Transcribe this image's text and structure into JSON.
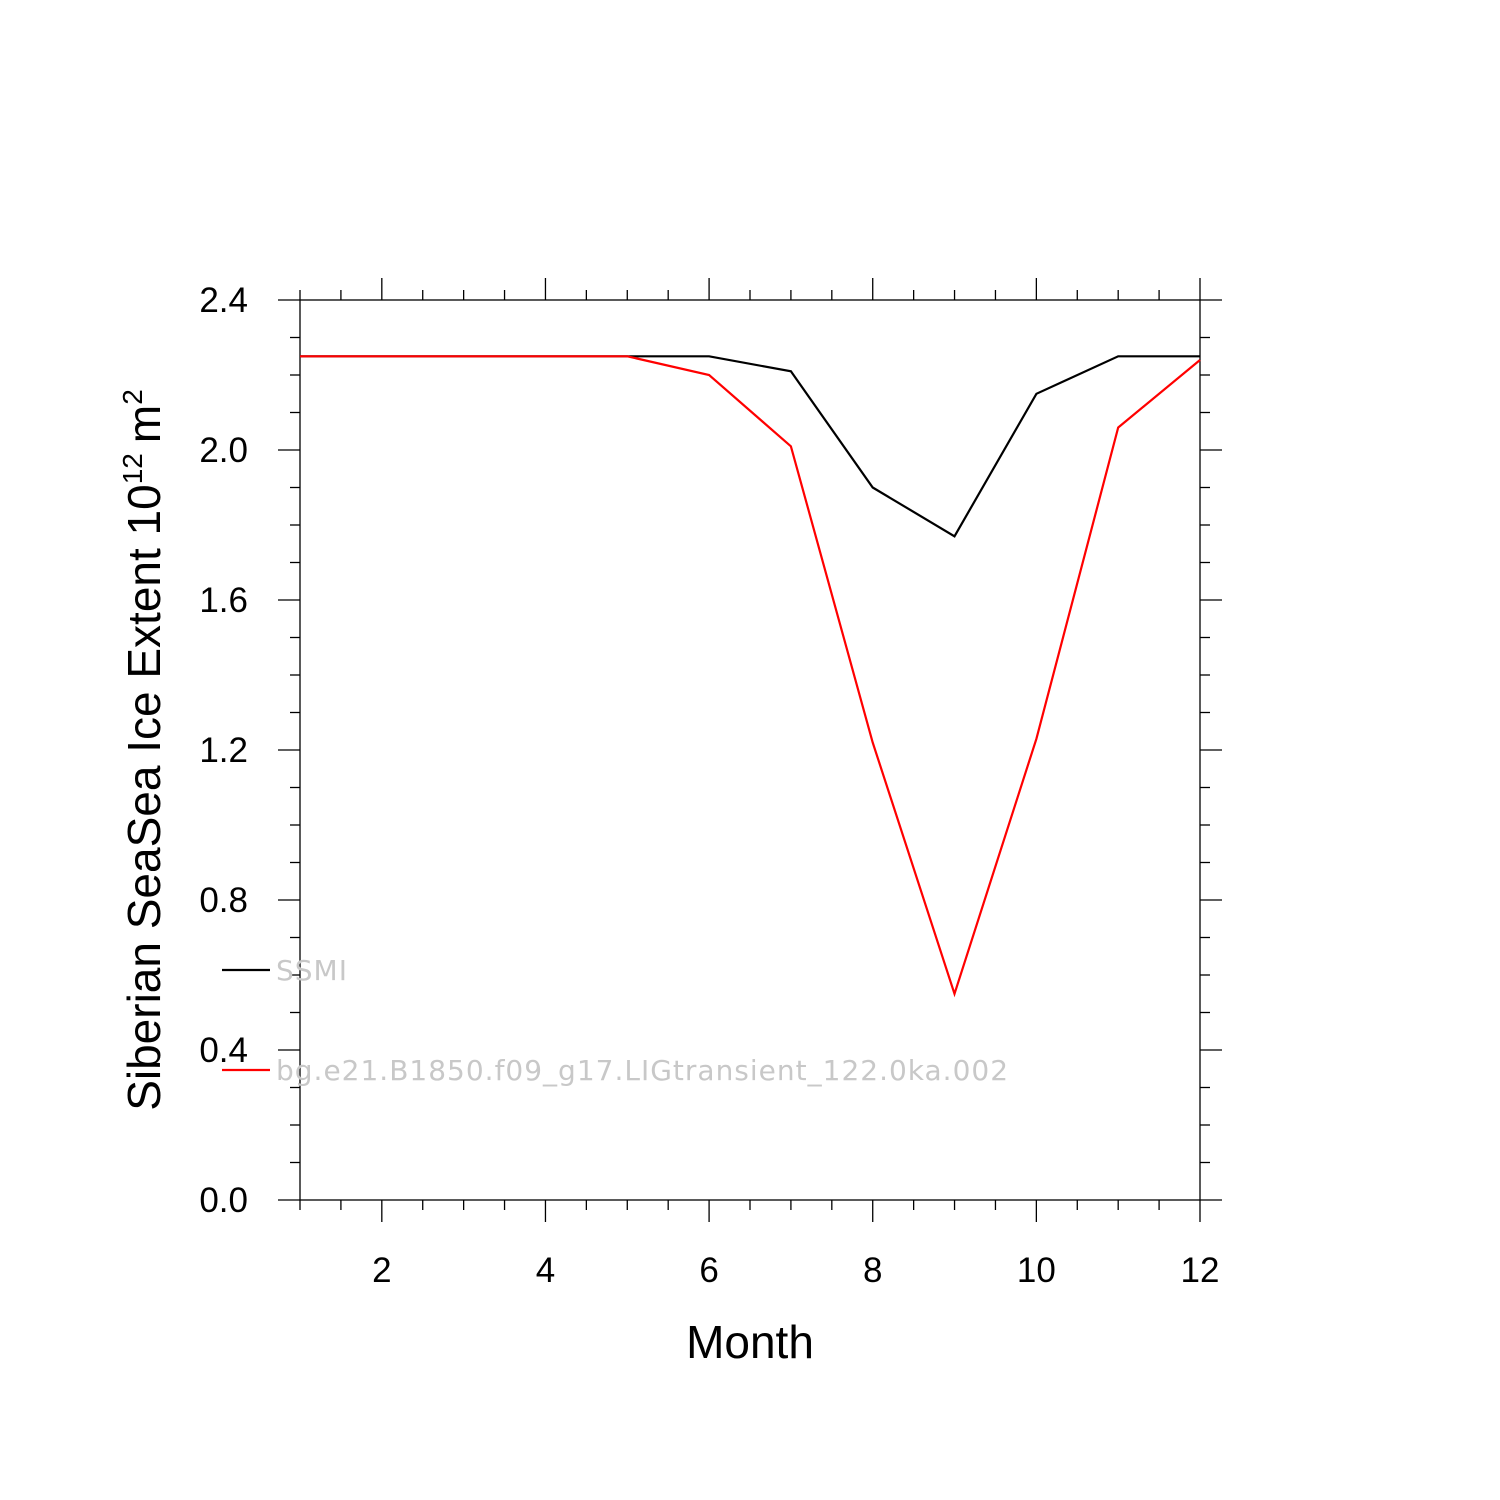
{
  "chart_data": {
    "type": "line",
    "xlabel": "Month",
    "ylabel": {
      "text": "Siberian SeaSea Ice Extent 10",
      "exponent": "12",
      "unit": "m",
      "unit_exponent": "2"
    },
    "xlim": [
      1,
      12
    ],
    "ylim": [
      0.0,
      2.4
    ],
    "x_ticks": [
      2,
      4,
      6,
      8,
      10,
      12
    ],
    "y_ticks": [
      "0.0",
      "0.4",
      "0.8",
      "1.2",
      "1.6",
      "2.0",
      "2.4"
    ],
    "grid": false,
    "legend_placement": "lower-left",
    "x": [
      1,
      2,
      3,
      4,
      5,
      6,
      7,
      8,
      9,
      10,
      11,
      12
    ],
    "series": [
      {
        "name": "SSMI",
        "color": "#000000",
        "values": [
          2.25,
          2.25,
          2.25,
          2.25,
          2.25,
          2.25,
          2.21,
          1.9,
          1.77,
          2.15,
          2.25,
          2.25
        ]
      },
      {
        "name": "bg.e21.B1850.f09_g17.LIGtransient_122.0ka.002",
        "color": "#ff0000",
        "values": [
          2.25,
          2.25,
          2.25,
          2.25,
          2.25,
          2.2,
          2.01,
          1.22,
          0.55,
          1.23,
          2.06,
          2.24
        ]
      }
    ]
  }
}
